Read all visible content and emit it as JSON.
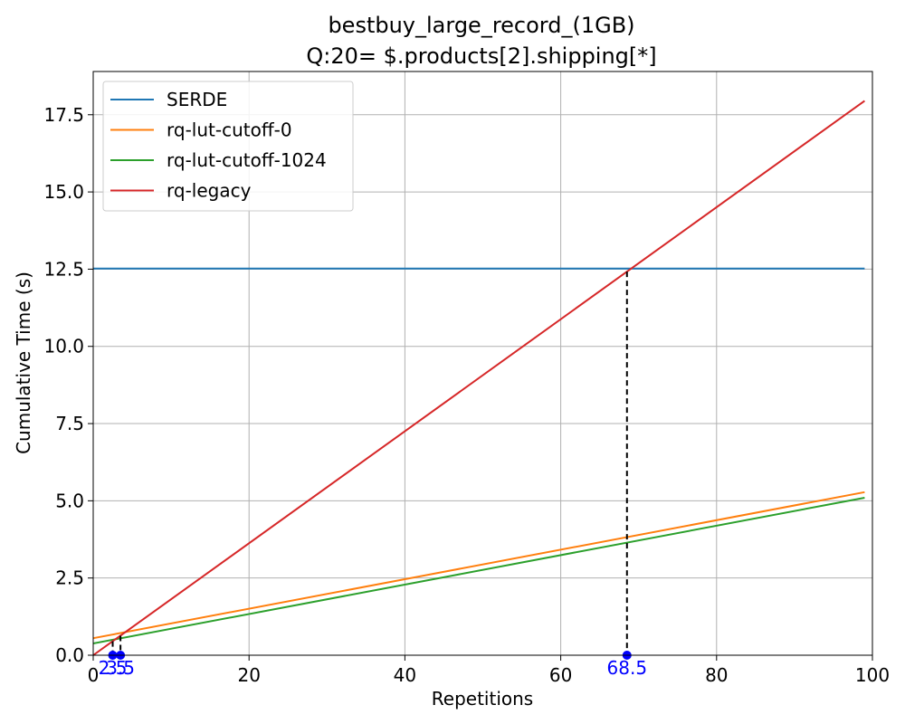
{
  "chart_data": {
    "type": "line",
    "title_line1": "bestbuy_large_record_(1GB)",
    "title_line2": "Q:20= $.products[2].shipping[*]",
    "xlabel": "Repetitions",
    "ylabel": "Cumulative Time (s)",
    "xlim": [
      0,
      100
    ],
    "ylim": [
      0,
      18.9
    ],
    "xticks": [
      0,
      20,
      40,
      60,
      80,
      100
    ],
    "yticks": [
      0.0,
      2.5,
      5.0,
      7.5,
      10.0,
      12.5,
      15.0,
      17.5
    ],
    "ytick_labels": [
      "0.0",
      "2.5",
      "5.0",
      "7.5",
      "10.0",
      "12.5",
      "15.0",
      "17.5"
    ],
    "grid": true,
    "legend_position": "upper-left",
    "series": [
      {
        "name": "SERDE",
        "color": "#1f77b4",
        "x": [
          0,
          99
        ],
        "y": [
          12.52,
          12.52
        ]
      },
      {
        "name": "rq-lut-cutoff-0",
        "color": "#ff7f0e",
        "x": [
          0,
          99
        ],
        "y": [
          0.55,
          5.28
        ]
      },
      {
        "name": "rq-lut-cutoff-1024",
        "color": "#2ca02c",
        "x": [
          0,
          99
        ],
        "y": [
          0.38,
          5.1
        ]
      },
      {
        "name": "rq-legacy",
        "color": "#d62728",
        "x": [
          0,
          99
        ],
        "y": [
          0.0,
          17.95
        ]
      }
    ],
    "annotations": [
      {
        "x": 2.5,
        "label": "2.5",
        "y": 0.45,
        "color": "#0000ff"
      },
      {
        "x": 3.5,
        "label": "3.5",
        "y": 0.63,
        "color": "#0000ff"
      },
      {
        "x": 68.5,
        "label": "68.5",
        "y": 12.42,
        "color": "#0000ff"
      }
    ]
  }
}
